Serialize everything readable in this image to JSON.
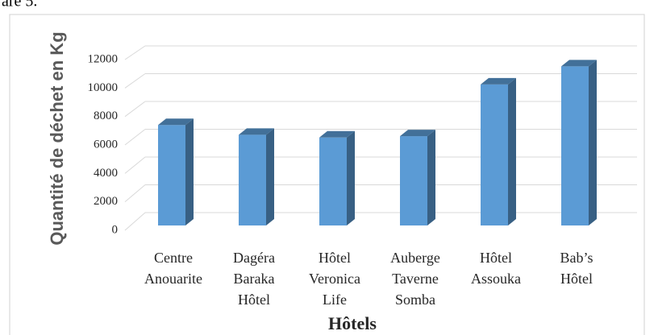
{
  "figure_label": "are 5.",
  "chart_data": {
    "type": "bar3d",
    "y_label": "Quantité de déchet en Kg",
    "x_label": "Hôtels",
    "categories": [
      [
        "Centre",
        "Anouarite"
      ],
      [
        "Dagéra",
        "Baraka",
        "Hôtel"
      ],
      [
        "Hôtel",
        "Veronica",
        "Life"
      ],
      [
        "Auberge",
        "Taverne",
        "Somba"
      ],
      [
        "Hôtel",
        "Assouka"
      ],
      [
        "Bab’s",
        "Hôtel"
      ]
    ],
    "values": [
      7200,
      6500,
      6300,
      6400,
      10100,
      11400
    ],
    "color": "#5b9bd5",
    "ylim": [
      0,
      12000
    ],
    "yticks": [
      0,
      2000,
      4000,
      6000,
      8000,
      10000,
      12000
    ],
    "grid": true
  }
}
